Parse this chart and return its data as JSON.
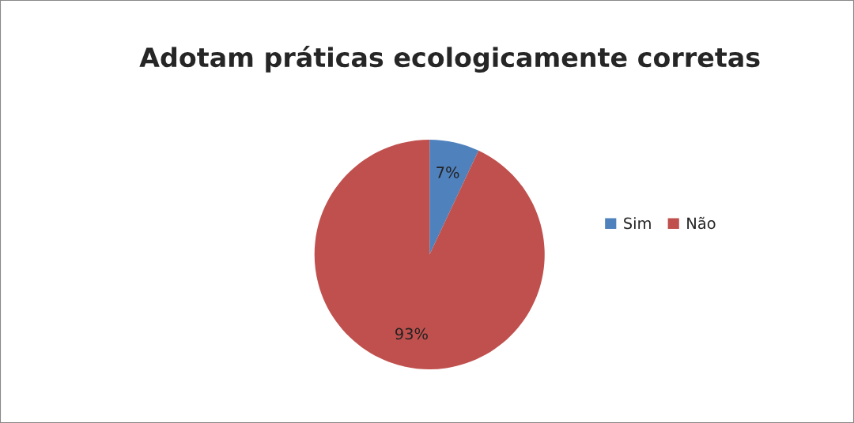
{
  "chart_data": {
    "type": "pie",
    "title": "Adotam práticas ecologicamente corretas",
    "categories": [
      "Sim",
      "Não"
    ],
    "values": [
      7,
      93
    ],
    "colors": [
      "#4f81bd",
      "#c0504d"
    ],
    "value_labels": [
      "7%",
      "93%"
    ],
    "legend": "right"
  }
}
